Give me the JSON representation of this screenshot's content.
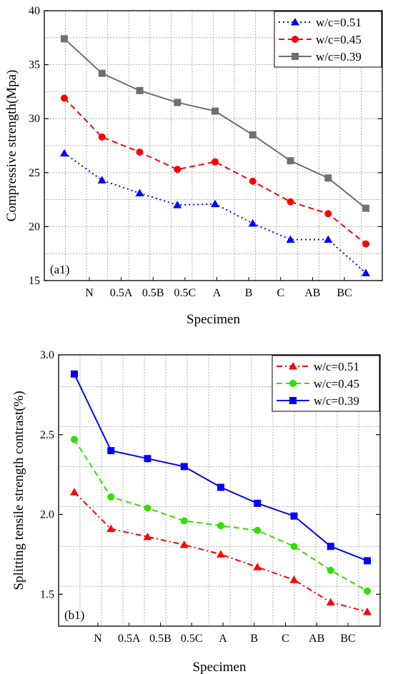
{
  "chart_data": [
    {
      "type": "line",
      "panel_label": "(a1)",
      "xlabel": "Specimen",
      "ylabel": "Compressive strength(Mpa)",
      "ylim": [
        15,
        40
      ],
      "yticks": [
        15,
        20,
        25,
        30,
        35,
        40
      ],
      "xticklabels": [
        "N",
        "0.5A",
        "0.5B",
        "0.5C",
        "A",
        "B",
        "C",
        "AB",
        "BC"
      ],
      "grid": true,
      "legend_position": "top-right",
      "series": [
        {
          "name": "w/c=0.51",
          "color": "#0000ff",
          "marker": "triangle",
          "dash": "dot",
          "values": [
            26.8,
            24.3,
            23.1,
            22.0,
            22.1,
            20.3,
            18.8,
            18.8,
            15.7
          ]
        },
        {
          "name": "w/c=0.45",
          "color": "#ff0000",
          "marker": "circle",
          "dash": "dash",
          "values": [
            31.9,
            28.3,
            26.9,
            25.3,
            26.0,
            24.2,
            22.3,
            21.2,
            18.4
          ]
        },
        {
          "name": "w/c=0.39",
          "color": "#707070",
          "marker": "square",
          "dash": "solid",
          "values": [
            37.4,
            34.2,
            32.6,
            31.5,
            30.7,
            28.5,
            26.1,
            24.5,
            21.7
          ]
        }
      ]
    },
    {
      "type": "line",
      "panel_label": "(b1)",
      "xlabel": "Specimen",
      "ylabel": "Splitting tensile strength contrast(%)",
      "ylim": [
        1.3,
        3.0
      ],
      "yticks": [
        1.5,
        2.0,
        2.5,
        3.0
      ],
      "yticklabels": [
        "1.5",
        "2.0",
        "2.5",
        "3.0"
      ],
      "xticklabels": [
        "N",
        "0.5A",
        "0.5B",
        "0.5C",
        "A",
        "B",
        "C",
        "AB",
        "BC"
      ],
      "grid": true,
      "legend_position": "top-right",
      "series": [
        {
          "name": "w/c=0.51",
          "color": "#ff0000",
          "marker": "triangle",
          "dash": "dashdot",
          "values": [
            2.14,
            1.91,
            1.86,
            1.81,
            1.75,
            1.67,
            1.59,
            1.45,
            1.39
          ]
        },
        {
          "name": "w/c=0.45",
          "color": "#33dd00",
          "marker": "circle",
          "dash": "dash",
          "values": [
            2.47,
            2.11,
            2.04,
            1.96,
            1.93,
            1.9,
            1.8,
            1.65,
            1.52
          ]
        },
        {
          "name": "w/c=0.39",
          "color": "#0000ff",
          "marker": "square",
          "dash": "solid",
          "values": [
            2.88,
            2.4,
            2.35,
            2.3,
            2.17,
            2.07,
            1.99,
            1.8,
            1.71
          ]
        }
      ]
    }
  ]
}
